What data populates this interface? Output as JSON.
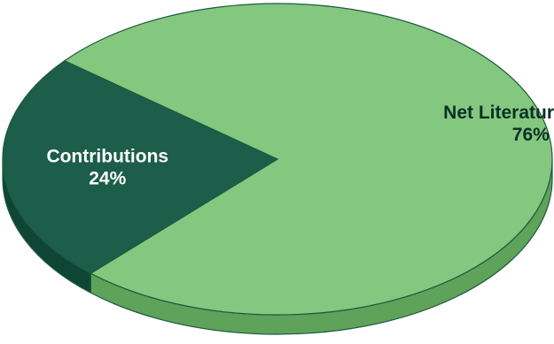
{
  "chart_data": {
    "type": "pie",
    "style": "3d",
    "title": "",
    "slices": [
      {
        "name": "Net Literature Sales",
        "value": 76,
        "label": "Net Literature Sales",
        "value_label": "76%",
        "color_top": "#84c77e",
        "color_side": "#5fa25a",
        "text_color": "#0b2f26"
      },
      {
        "name": "Contributions",
        "value": 24,
        "label": "Contributions",
        "value_label": "24%",
        "color_top": "#1c5e49",
        "color_side": "#0f4535",
        "text_color": "#ffffff"
      }
    ],
    "legend": "none"
  },
  "colors": {
    "background": "#ffffff",
    "outline": "#1e5a3f"
  }
}
